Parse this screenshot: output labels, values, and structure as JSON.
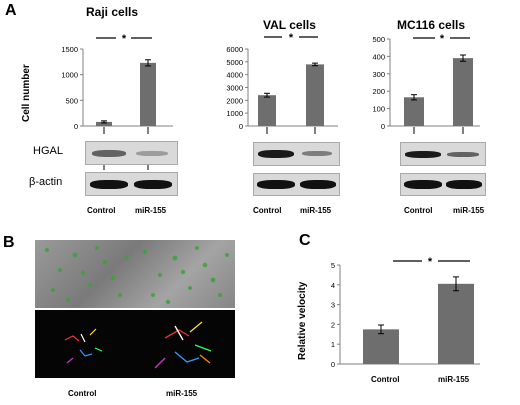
{
  "panels": {
    "a": "A",
    "b": "B",
    "c": "C"
  },
  "labels": {
    "cell_number": "Cell number",
    "relative_velocity": "Relative velocity",
    "hgal": "HGAL",
    "b_actin": "β-actin",
    "control": "Control",
    "mir155": "miR-155",
    "star": "*"
  },
  "colors": {
    "bar": "#6e6e6e",
    "axis": "#808080"
  },
  "chart_data": [
    {
      "type": "bar",
      "title": "Raji cells",
      "categories": [
        "Control",
        "miR-155"
      ],
      "values": [
        80,
        1230
      ],
      "errors": [
        20,
        60
      ],
      "ylabel": "Cell number",
      "ylim": [
        0,
        1500
      ],
      "yticks": [
        "0",
        "500",
        "1000",
        "1500"
      ],
      "significance": "*"
    },
    {
      "type": "bar",
      "title": "VAL cells",
      "categories": [
        "Control",
        "miR-155"
      ],
      "values": [
        2400,
        4800
      ],
      "errors": [
        150,
        100
      ],
      "ylim": [
        0,
        6000
      ],
      "yticks": [
        "0",
        "1000",
        "2000",
        "3000",
        "4000",
        "5000",
        "6000"
      ],
      "significance": "*"
    },
    {
      "type": "bar",
      "title": "MC116 cells",
      "categories": [
        "Control",
        "miR-155"
      ],
      "values": [
        165,
        390
      ],
      "errors": [
        15,
        18
      ],
      "ylim": [
        0,
        500
      ],
      "yticks": [
        "0",
        "100",
        "200",
        "300",
        "400",
        "500"
      ],
      "significance": "*"
    },
    {
      "type": "bar",
      "title": "",
      "categories": [
        "Control",
        "miR-155"
      ],
      "values": [
        1.75,
        4.05
      ],
      "errors": [
        0.22,
        0.35
      ],
      "ylabel": "Relative velocity",
      "ylim": [
        0,
        5
      ],
      "yticks": [
        "0",
        "1",
        "2",
        "3",
        "4",
        "5"
      ],
      "significance": "*"
    }
  ]
}
